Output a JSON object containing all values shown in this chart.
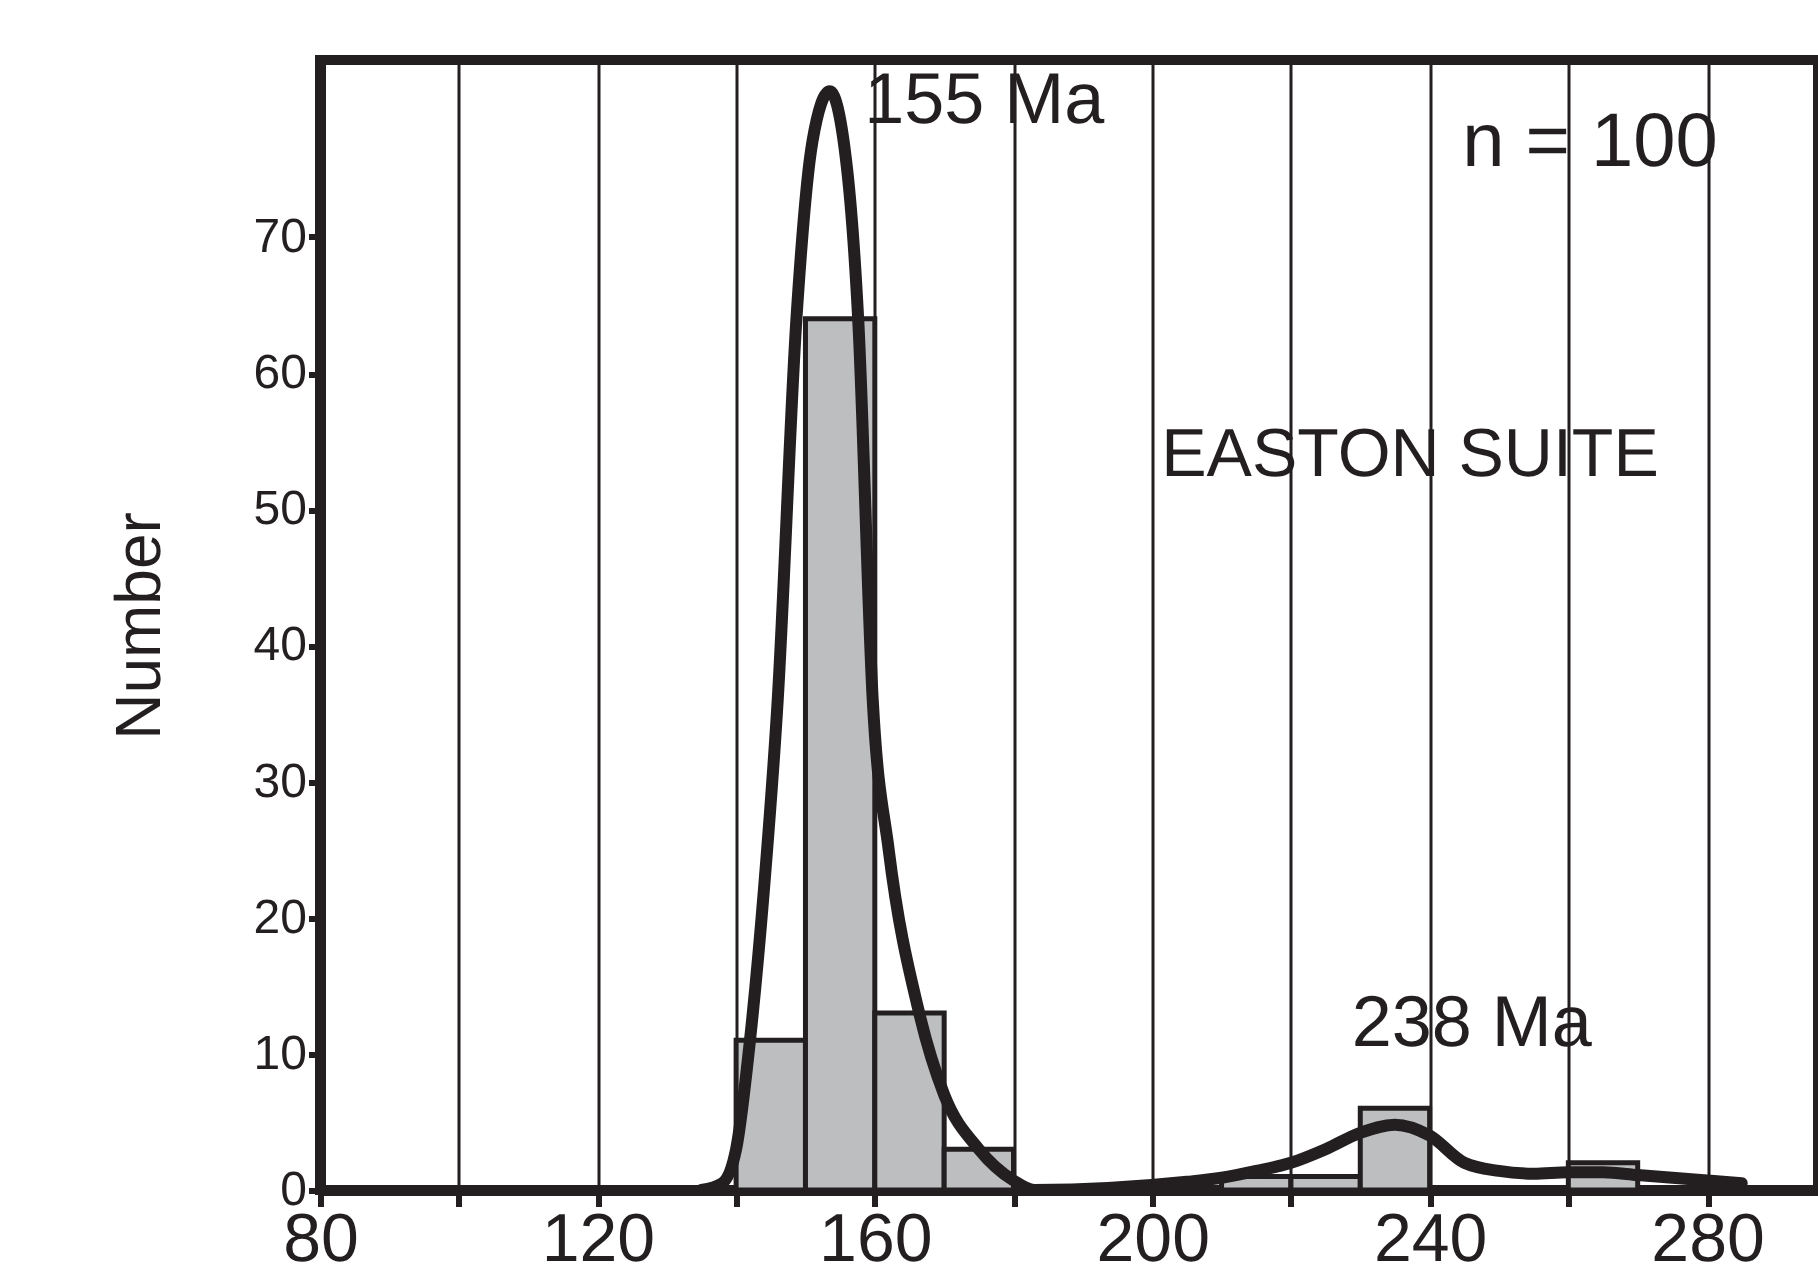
{
  "chart_data": {
    "type": "histogram",
    "ylabel": "Number",
    "series": [
      {
        "color": "#bcbec0",
        "bins": [
          140,
          150,
          160,
          170,
          180,
          190,
          200,
          210,
          220,
          230,
          240,
          250,
          260,
          270
        ],
        "values": [
          11,
          64,
          13,
          3,
          0,
          0,
          0,
          1,
          1,
          6,
          0,
          0,
          2
        ]
      },
      {
        "type": "line",
        "color": "#231f20",
        "x": [
          135,
          138,
          140,
          142,
          144,
          146,
          148.7,
          151,
          153.5,
          156,
          157.6,
          159.7,
          162,
          166.4,
          170,
          175,
          180,
          183,
          205,
          210,
          215,
          220,
          225,
          230,
          235,
          240,
          245,
          250,
          255,
          260,
          265,
          270,
          275,
          280,
          285
        ],
        "values": [
          0,
          0.5,
          3,
          11,
          22,
          36,
          64,
          77,
          80.7,
          75,
          64,
          36,
          25,
          13,
          7,
          3,
          0.7,
          0,
          0.6,
          0.9,
          1.4,
          2,
          3,
          4.2,
          4.8,
          4,
          2,
          1.4,
          1.2,
          1.3,
          1.3,
          1.1,
          0.9,
          0.7,
          0.5
        ]
      }
    ],
    "xlim": [
      80,
      296
    ],
    "ylim": [
      0,
      83
    ],
    "xticks": [
      80,
      {
        "value": 100,
        "label": null
      },
      120,
      {
        "value": 140,
        "label": null
      },
      160,
      {
        "value": 180,
        "label": null
      },
      200,
      {
        "value": 220,
        "label": null
      },
      240,
      {
        "value": 260,
        "label": null
      },
      280
    ],
    "yticks": [
      0,
      10,
      20,
      30,
      40,
      50,
      60,
      70
    ],
    "grid": "x",
    "line_style": "solid",
    "marker": "none",
    "annotations": [
      {
        "text": "155 Ma",
        "x": 155,
        "y": 80
      },
      {
        "text": "238 Ma",
        "x": 238,
        "y": 5
      },
      "n = 100",
      "EASTON SUITE"
    ]
  }
}
